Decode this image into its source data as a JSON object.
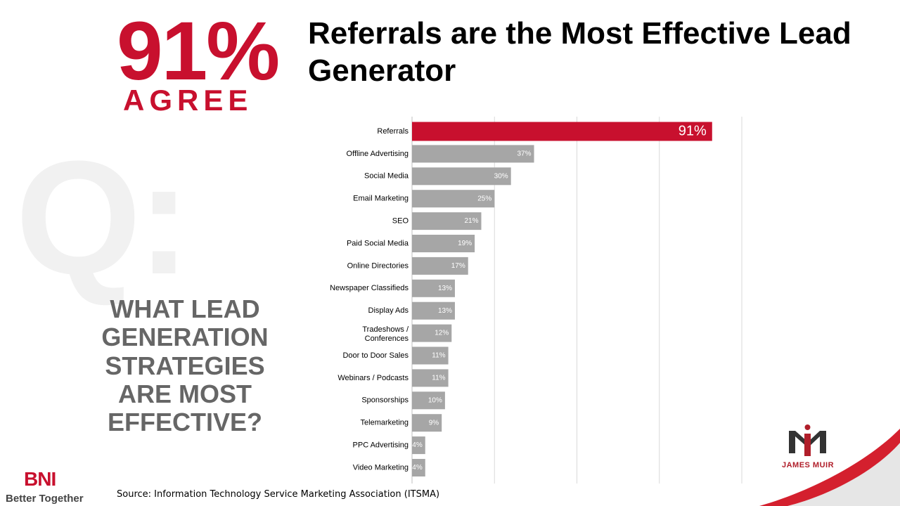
{
  "headline": {
    "big_percent": "91%",
    "agree": "AGREE",
    "title": "Referrals are the Most Effective Lead Generator"
  },
  "background_glyph": "Q:",
  "question": "WHAT LEAD GENERATION STRATEGIES ARE MOST EFFECTIVE?",
  "source": "Source: Information Technology Service Marketing Association (ITSMA)",
  "logos": {
    "bni": "BNI",
    "bni_tagline": "Better Together",
    "james_muir": "JAMES MUIR"
  },
  "colors": {
    "accent": "#c8102e",
    "bar": "#a6a6a6",
    "highlight_bar": "#c8102e",
    "grid": "#d9d9d9"
  },
  "chart_data": {
    "type": "bar",
    "orientation": "horizontal",
    "categories": [
      "Referrals",
      "Offline Advertising",
      "Social Media",
      "Email Marketing",
      "SEO",
      "Paid Social Media",
      "Online Directories",
      "Newspaper Classifieds",
      "Display Ads",
      "Tradeshows / Conferences",
      "Door to Door Sales",
      "Webinars / Podcasts",
      "Sponsorships",
      "Telemarketing",
      "PPC Advertising",
      "Video Marketing"
    ],
    "values": [
      91,
      37,
      30,
      25,
      21,
      19,
      17,
      13,
      13,
      12,
      11,
      11,
      10,
      9,
      4,
      4
    ],
    "value_labels": [
      "91%",
      "37%",
      "30%",
      "25%",
      "21%",
      "19%",
      "17%",
      "13%",
      "13%",
      "12%",
      "11%",
      "11%",
      "10%",
      "9%",
      "4%",
      "4%"
    ],
    "highlight": "Referrals",
    "xlim": [
      0,
      100
    ],
    "grid": true,
    "title": "",
    "xlabel": "",
    "ylabel": ""
  }
}
